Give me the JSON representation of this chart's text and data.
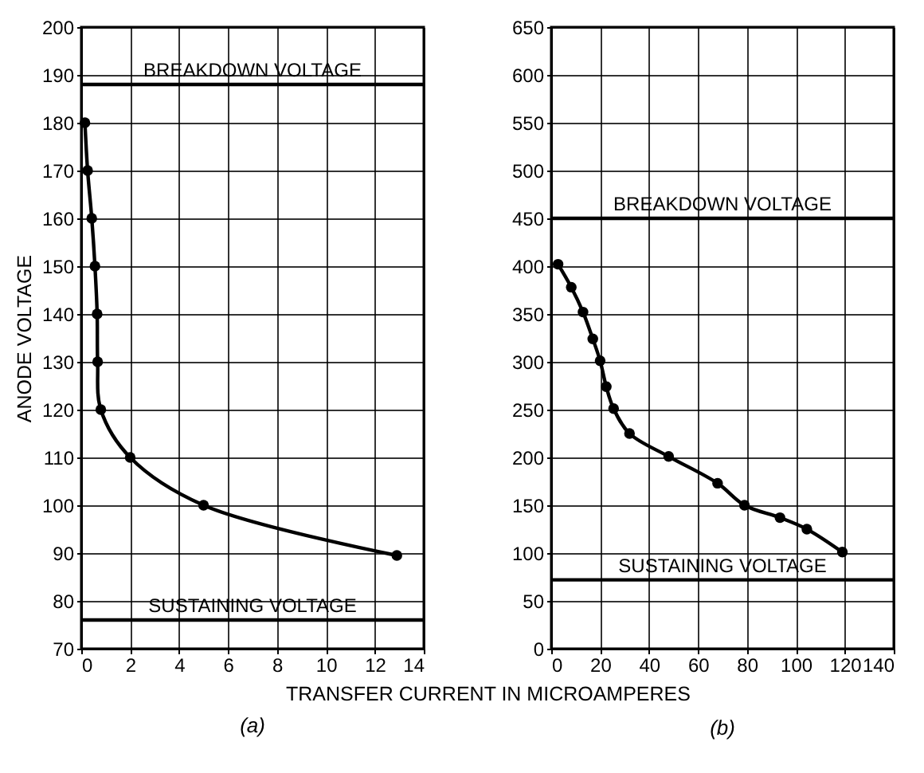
{
  "chart_data": [
    {
      "type": "line",
      "title": "(a)",
      "xlabel": "TRANSFER CURRENT IN MICROAMPERES",
      "ylabel": "ANODE VOLTAGE",
      "x": [
        0.15,
        0.26,
        0.43,
        0.56,
        0.65,
        0.67,
        0.8,
        2.0,
        5.0,
        12.9
      ],
      "series": [
        {
          "color": "#000000",
          "values": [
            180,
            170,
            160,
            150,
            140,
            130,
            120,
            110,
            100,
            89.5
          ]
        }
      ],
      "xlim": [
        0,
        14
      ],
      "xticks": [
        0,
        2,
        4,
        6,
        8,
        10,
        12,
        14
      ],
      "ylim": [
        70,
        200
      ],
      "yticks": [
        70,
        80,
        90,
        100,
        110,
        120,
        130,
        140,
        150,
        160,
        170,
        180,
        190,
        200
      ],
      "ref_lines": [
        {
          "axis": "y",
          "value": 188,
          "label": "BREAKDOWN VOLTAGE"
        },
        {
          "axis": "y",
          "value": 76,
          "label": "SUSTAINING VOLTAGE"
        }
      ],
      "grid": true,
      "marker": "circle",
      "line_style": "solid"
    },
    {
      "type": "line",
      "title": "(b)",
      "x": [
        2.8,
        8.2,
        13,
        17,
        20,
        22.5,
        25.5,
        32,
        48,
        68,
        79,
        93.5,
        104.5,
        119
      ],
      "series": [
        {
          "color": "#000000",
          "values": [
            402,
            378,
            352,
            324,
            301,
            274,
            251,
            225,
            201,
            173,
            150,
            137,
            125,
            101
          ]
        }
      ],
      "xlim": [
        0,
        140
      ],
      "xticks": [
        0,
        20,
        40,
        60,
        80,
        100,
        120,
        140
      ],
      "ylim": [
        0,
        650
      ],
      "yticks": [
        0,
        50,
        100,
        150,
        200,
        250,
        300,
        350,
        400,
        450,
        500,
        550,
        600,
        650
      ],
      "ref_lines": [
        {
          "axis": "y",
          "value": 450,
          "label": "BREAKDOWN VOLTAGE"
        },
        {
          "axis": "y",
          "value": 72,
          "label": "SUSTAINING VOLTAGE"
        }
      ],
      "grid": true,
      "marker": "circle",
      "line_style": "solid"
    }
  ]
}
